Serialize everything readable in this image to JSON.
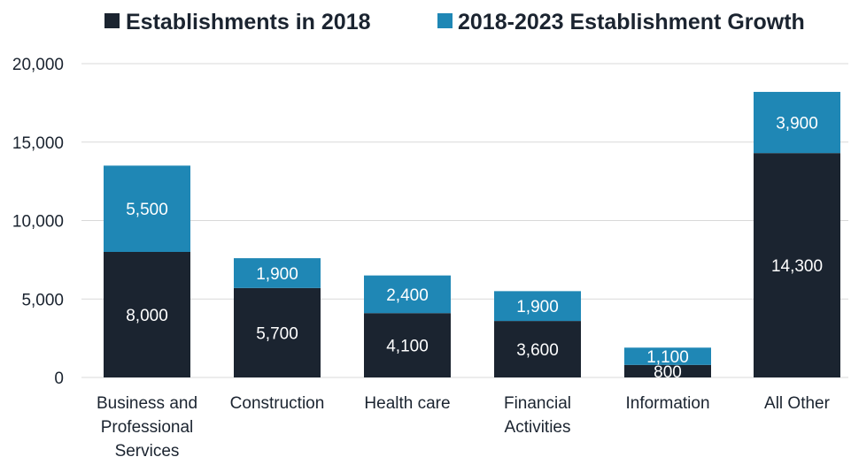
{
  "chart_data": {
    "type": "bar",
    "stacked": true,
    "title": "",
    "xlabel": "",
    "ylabel": "",
    "categories": [
      [
        "Business and",
        "Professional",
        "Services"
      ],
      [
        "Construction"
      ],
      [
        "Health care"
      ],
      [
        "Financial",
        "Activities"
      ],
      [
        "Information"
      ],
      [
        "All Other"
      ]
    ],
    "series": [
      {
        "name": "Establishments in 2018",
        "color": "#1b2430",
        "values": [
          8000,
          5700,
          4100,
          3600,
          800,
          14300
        ],
        "labels": [
          "8,000",
          "5,700",
          "4,100",
          "3,600",
          "800",
          "14,300"
        ]
      },
      {
        "name": "2018-2023 Establishment Growth",
        "color": "#1f87b5",
        "values": [
          5500,
          1900,
          2400,
          1900,
          1100,
          3900
        ],
        "labels": [
          "5,500",
          "1,900",
          "2,400",
          "1,900",
          "1,100",
          "3,900"
        ]
      }
    ],
    "ylim": [
      0,
      20000
    ],
    "yticks": [
      0,
      5000,
      10000,
      15000,
      20000
    ],
    "ytick_labels": [
      "0",
      "5,000",
      "10,000",
      "15,000",
      "20,000"
    ],
    "grid": true,
    "legend_position": "top"
  }
}
